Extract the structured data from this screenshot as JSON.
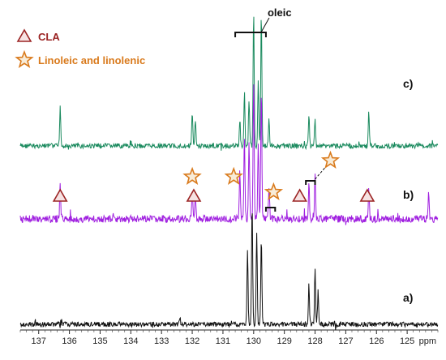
{
  "chart_data": {
    "type": "line",
    "xlabel": "ppm",
    "x_reversed": true,
    "xlim": [
      124,
      137.6
    ],
    "xticks": [
      137,
      136,
      135,
      134,
      133,
      132,
      131,
      130,
      129,
      128,
      127,
      126,
      125
    ],
    "legend": {
      "placement": "top-left",
      "entries": [
        {
          "marker": "triangle",
          "label": "CLA",
          "color": "#9b2424"
        },
        {
          "marker": "star",
          "label": "Linoleic and linolenic",
          "color": "#d97a1c"
        }
      ]
    },
    "series": [
      {
        "name": "c)",
        "color": "#1a8a5e",
        "peaks": [
          {
            "ppm": 136.3,
            "height": 0.3
          },
          {
            "ppm": 132.0,
            "height": 0.25
          },
          {
            "ppm": 131.9,
            "height": 0.18
          },
          {
            "ppm": 130.45,
            "height": 0.2
          },
          {
            "ppm": 130.3,
            "height": 0.4
          },
          {
            "ppm": 130.15,
            "height": 0.35
          },
          {
            "ppm": 130.0,
            "height": 1.0
          },
          {
            "ppm": 129.85,
            "height": 0.5
          },
          {
            "ppm": 129.75,
            "height": 1.0
          },
          {
            "ppm": 129.5,
            "height": 0.2
          },
          {
            "ppm": 128.2,
            "height": 0.22
          },
          {
            "ppm": 128.0,
            "height": 0.2
          },
          {
            "ppm": 126.25,
            "height": 0.25
          }
        ]
      },
      {
        "name": "b)",
        "color": "#a020e0",
        "peaks": [
          {
            "ppm": 136.3,
            "height": 0.25
          },
          {
            "ppm": 132.0,
            "height": 0.2
          },
          {
            "ppm": 131.9,
            "height": 0.18
          },
          {
            "ppm": 130.45,
            "height": 0.35
          },
          {
            "ppm": 130.3,
            "height": 0.6
          },
          {
            "ppm": 130.15,
            "height": 0.55
          },
          {
            "ppm": 130.0,
            "height": 1.0
          },
          {
            "ppm": 129.85,
            "height": 0.55
          },
          {
            "ppm": 129.75,
            "height": 0.95
          },
          {
            "ppm": 129.5,
            "height": 0.25
          },
          {
            "ppm": 128.2,
            "height": 0.25
          },
          {
            "ppm": 128.0,
            "height": 0.35
          },
          {
            "ppm": 126.25,
            "height": 0.22
          },
          {
            "ppm": 124.3,
            "height": 0.18
          }
        ]
      },
      {
        "name": "a)",
        "color": "#111111",
        "peaks": [
          {
            "ppm": 132.4,
            "height": 0.05
          },
          {
            "ppm": 130.2,
            "height": 0.55
          },
          {
            "ppm": 130.05,
            "height": 0.9
          },
          {
            "ppm": 129.9,
            "height": 0.7
          },
          {
            "ppm": 129.75,
            "height": 0.65
          },
          {
            "ppm": 128.2,
            "height": 0.3
          },
          {
            "ppm": 128.0,
            "height": 0.4
          },
          {
            "ppm": 127.9,
            "height": 0.25
          }
        ]
      }
    ],
    "annotations": [
      {
        "text": "oleic",
        "kind": "bracket-label",
        "ppm_range": [
          129.6,
          130.6
        ],
        "near_trace": "c)"
      },
      {
        "marker": "triangle",
        "ppm": 136.3,
        "trace": "b)"
      },
      {
        "marker": "triangle",
        "ppm": 131.95,
        "trace": "b)"
      },
      {
        "marker": "triangle",
        "ppm": 128.5,
        "trace": "b)"
      },
      {
        "marker": "triangle",
        "ppm": 126.3,
        "trace": "b)"
      },
      {
        "marker": "star",
        "ppm": 132.0,
        "trace": "b)"
      },
      {
        "marker": "star",
        "ppm": 130.65,
        "trace": "b)"
      },
      {
        "marker": "star",
        "ppm": 129.35,
        "trace": "b)",
        "bracket_ppm": [
          129.3,
          129.6
        ]
      },
      {
        "marker": "star",
        "ppm": 127.5,
        "trace": "b)",
        "bracket_ppm": [
          128.0,
          128.3
        ]
      }
    ]
  }
}
